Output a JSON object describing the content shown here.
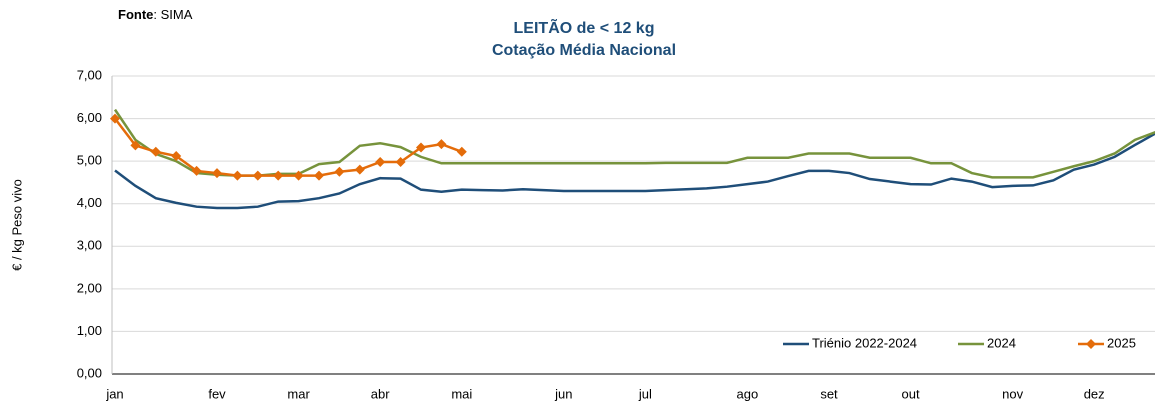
{
  "source_label": "Fonte",
  "source_text": ": SIMA",
  "chart_data": {
    "type": "line",
    "title": "LEITÃO de < 12 kg",
    "subtitle": "Cotação Média Nacional",
    "y_label": "€ / kg Peso vivo",
    "categories": [
      "jan",
      null,
      null,
      null,
      null,
      "fev",
      null,
      null,
      null,
      "mar",
      null,
      null,
      null,
      "abr",
      null,
      null,
      null,
      "mai",
      null,
      null,
      null,
      null,
      "jun",
      null,
      null,
      null,
      "jul",
      null,
      null,
      null,
      null,
      "ago",
      null,
      null,
      null,
      "set",
      null,
      null,
      null,
      "out",
      null,
      null,
      null,
      null,
      "nov",
      null,
      null,
      null,
      "dez",
      null,
      null,
      null
    ],
    "ylim": [
      0,
      7
    ],
    "yticks": [
      {
        "value": 0,
        "label": "0,00"
      },
      {
        "value": 1,
        "label": "1,00"
      },
      {
        "value": 2,
        "label": "2,00"
      },
      {
        "value": 3,
        "label": "3,00"
      },
      {
        "value": 4,
        "label": "4,00"
      },
      {
        "value": 5,
        "label": "5,00"
      },
      {
        "value": 6,
        "label": "6,00"
      },
      {
        "value": 7,
        "label": "7,00"
      }
    ],
    "grid": true,
    "legend": "bottom-right",
    "series": [
      {
        "name": "Triénio 2022-2024",
        "color": "#1f4e79",
        "marker": false,
        "values": [
          4.78,
          4.42,
          4.13,
          4.02,
          3.93,
          3.9,
          3.9,
          3.93,
          4.05,
          4.06,
          4.13,
          4.24,
          4.46,
          4.6,
          4.59,
          4.33,
          4.28,
          4.33,
          4.32,
          4.31,
          4.34,
          4.32,
          4.3,
          4.3,
          4.3,
          4.3,
          4.3,
          4.32,
          4.34,
          4.36,
          4.4,
          4.46,
          4.52,
          4.65,
          4.77,
          4.77,
          4.72,
          4.58,
          4.52,
          4.46,
          4.45,
          4.59,
          4.52,
          4.39,
          4.42,
          4.43,
          4.55,
          4.8,
          4.92,
          5.1,
          5.38,
          5.65
        ]
      },
      {
        "name": "2024",
        "color": "#77933c",
        "marker": false,
        "values": [
          6.21,
          5.5,
          5.17,
          5.0,
          4.72,
          4.68,
          4.66,
          4.66,
          4.7,
          4.7,
          4.93,
          4.98,
          5.36,
          5.42,
          5.33,
          5.1,
          4.95,
          4.95,
          4.95,
          4.95,
          4.95,
          4.95,
          4.95,
          4.95,
          4.95,
          4.95,
          4.95,
          4.96,
          4.96,
          4.96,
          4.96,
          5.08,
          5.08,
          5.08,
          5.18,
          5.18,
          5.18,
          5.08,
          5.08,
          5.08,
          4.95,
          4.95,
          4.72,
          4.62,
          4.62,
          4.62,
          4.75,
          4.88,
          5.0,
          5.18,
          5.5,
          5.68
        ]
      },
      {
        "name": "2025",
        "color": "#e46c0a",
        "marker": true,
        "values": [
          6.0,
          5.37,
          5.22,
          5.12,
          4.77,
          4.72,
          4.66,
          4.66,
          4.66,
          4.66,
          4.66,
          4.75,
          4.8,
          4.98,
          4.98,
          5.32,
          5.4,
          5.22,
          null,
          null,
          null,
          null,
          null,
          null,
          null,
          null,
          null,
          null,
          null,
          null,
          null,
          null,
          null,
          null,
          null,
          null,
          null,
          null,
          null,
          null,
          null,
          null,
          null,
          null,
          null,
          null,
          null,
          null,
          null,
          null,
          null,
          null
        ]
      }
    ]
  }
}
